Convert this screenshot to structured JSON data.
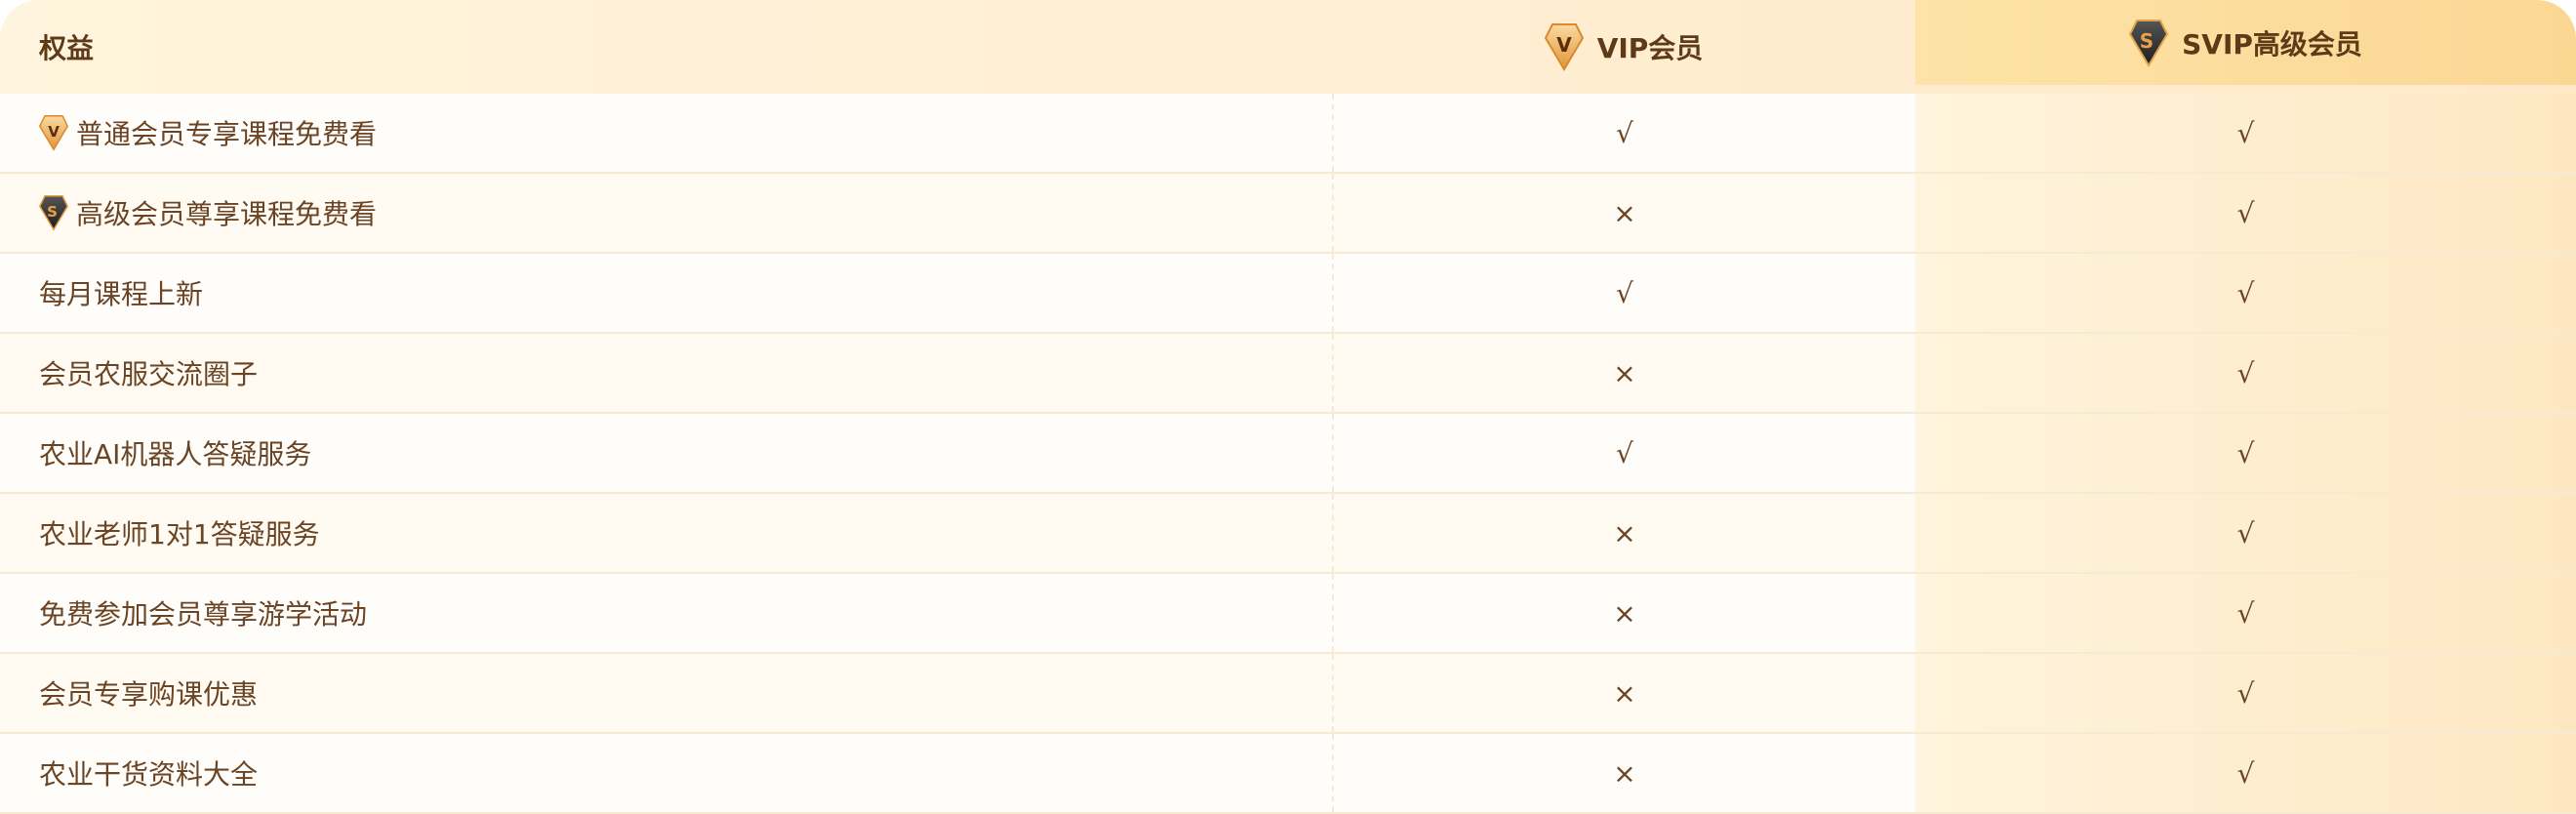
{
  "header": {
    "benefit": "权益",
    "vip": "VIP会员",
    "svip": "SVIP高级会员"
  },
  "icons": {
    "vip": "vip-diamond-icon",
    "svip": "svip-diamond-icon"
  },
  "colors": {
    "text": "#6a4424",
    "svip_column": "#fde3a8",
    "header": "#fff4dd"
  },
  "rows": [
    {
      "label": "普通会员专享课程免费看",
      "icon": "vip",
      "vip": "√",
      "svip": "√"
    },
    {
      "label": "高级会员尊享课程免费看",
      "icon": "svip",
      "vip": "×",
      "svip": "√"
    },
    {
      "label": "每月课程上新",
      "vip": "√",
      "svip": "√"
    },
    {
      "label": "会员农服交流圈子",
      "vip": "×",
      "svip": "√"
    },
    {
      "label": "农业AI机器人答疑服务",
      "vip": "√",
      "svip": "√"
    },
    {
      "label": "农业老师1对1答疑服务",
      "vip": "×",
      "svip": "√"
    },
    {
      "label": "免费参加会员尊享游学活动",
      "vip": "×",
      "svip": "√"
    },
    {
      "label": "会员专享购课优惠",
      "vip": "×",
      "svip": "√"
    },
    {
      "label": "农业干货资料大全",
      "vip": "×",
      "svip": "√"
    }
  ]
}
